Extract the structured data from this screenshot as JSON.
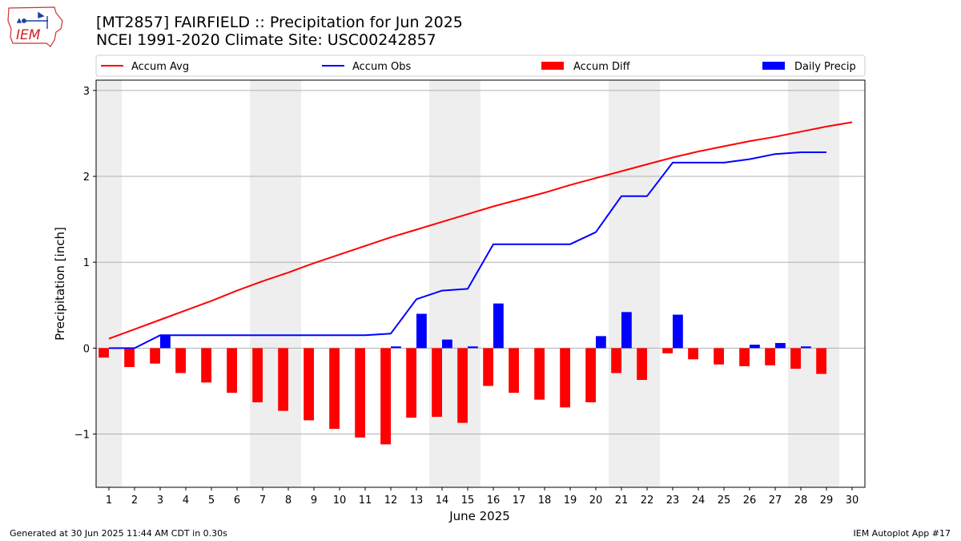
{
  "header": {
    "title_line1": "[MT2857] FAIRFIELD :: Precipitation for Jun 2025",
    "title_line2": "NCEI 1991-2020 Climate Site: USC00242857"
  },
  "logo": {
    "text": "IEM",
    "icon": "iowa-state-map-logo"
  },
  "footer": {
    "generated": "Generated at 30 Jun 2025 11:44 AM CDT in 0.30s",
    "app": "IEM Autoplot App #17"
  },
  "colors": {
    "accum_avg": "#ff0000",
    "accum_obs": "#0000ff",
    "accum_diff": "#ff0000",
    "daily_precip": "#0000ff",
    "weekend_shade": "#eeeeee",
    "grid": "#b0b0b0"
  },
  "chart_data": {
    "type": "bar",
    "xlabel": "June 2025",
    "ylabel": "Precipitation [inch]",
    "ylim": [
      -1.62,
      3.12
    ],
    "yticks": [
      -1,
      0,
      1,
      2,
      3
    ],
    "ytick_labels": [
      "−1",
      "0",
      "1",
      "2",
      "3"
    ],
    "grid": "horizontal",
    "legend_placement": "top",
    "x": [
      1,
      2,
      3,
      4,
      5,
      6,
      7,
      8,
      9,
      10,
      11,
      12,
      13,
      14,
      15,
      16,
      17,
      18,
      19,
      20,
      21,
      22,
      23,
      24,
      25,
      26,
      27,
      28,
      29,
      30
    ],
    "weekend_spans": [
      [
        1,
        1
      ],
      [
        7,
        8
      ],
      [
        14,
        15
      ],
      [
        21,
        22
      ],
      [
        28,
        29
      ]
    ],
    "legend": [
      "Accum Avg",
      "Accum Obs",
      "Accum Diff",
      "Daily Precip"
    ],
    "series": [
      {
        "name": "Accum Avg",
        "kind": "line",
        "x": [
          1,
          2,
          3,
          4,
          5,
          6,
          7,
          8,
          9,
          10,
          11,
          12,
          13,
          14,
          15,
          16,
          17,
          18,
          19,
          20,
          21,
          22,
          23,
          24,
          25,
          26,
          27,
          28,
          29,
          30
        ],
        "values": [
          0.11,
          0.22,
          0.33,
          0.44,
          0.55,
          0.67,
          0.78,
          0.88,
          0.99,
          1.09,
          1.19,
          1.29,
          1.38,
          1.47,
          1.56,
          1.65,
          1.73,
          1.81,
          1.9,
          1.98,
          2.06,
          2.14,
          2.22,
          2.29,
          2.35,
          2.41,
          2.46,
          2.52,
          2.58,
          2.63
        ]
      },
      {
        "name": "Accum Obs",
        "kind": "line",
        "x": [
          1,
          2,
          3,
          4,
          5,
          6,
          7,
          8,
          9,
          10,
          11,
          12,
          13,
          14,
          15,
          16,
          17,
          18,
          19,
          20,
          21,
          22,
          23,
          24,
          25,
          26,
          27,
          28,
          29
        ],
        "values": [
          0.0,
          0.0,
          0.15,
          0.15,
          0.15,
          0.15,
          0.15,
          0.15,
          0.15,
          0.15,
          0.15,
          0.17,
          0.57,
          0.67,
          0.69,
          1.21,
          1.21,
          1.21,
          1.21,
          1.35,
          1.77,
          1.77,
          2.16,
          2.16,
          2.16,
          2.2,
          2.26,
          2.28,
          2.28
        ]
      },
      {
        "name": "Accum Diff",
        "kind": "bar",
        "offset": "left",
        "x": [
          1,
          2,
          3,
          4,
          5,
          6,
          7,
          8,
          9,
          10,
          11,
          12,
          13,
          14,
          15,
          16,
          17,
          18,
          19,
          20,
          21,
          22,
          23,
          24,
          25,
          26,
          27,
          28,
          29
        ],
        "values": [
          -0.11,
          -0.22,
          -0.18,
          -0.29,
          -0.4,
          -0.52,
          -0.63,
          -0.73,
          -0.84,
          -0.94,
          -1.04,
          -1.12,
          -0.81,
          -0.8,
          -0.87,
          -0.44,
          -0.52,
          -0.6,
          -0.69,
          -0.63,
          -0.29,
          -0.37,
          -0.06,
          -0.13,
          -0.19,
          -0.21,
          -0.2,
          -0.24,
          -0.3
        ]
      },
      {
        "name": "Daily Precip",
        "kind": "bar",
        "offset": "right",
        "x": [
          1,
          2,
          3,
          4,
          5,
          6,
          7,
          8,
          9,
          10,
          11,
          12,
          13,
          14,
          15,
          16,
          17,
          18,
          19,
          20,
          21,
          22,
          23,
          24,
          25,
          26,
          27,
          28,
          29
        ],
        "values": [
          0,
          0,
          0.15,
          0,
          0,
          0,
          0,
          0,
          0,
          0,
          0,
          0.02,
          0.4,
          0.1,
          0.02,
          0.52,
          0,
          0,
          0,
          0.14,
          0.42,
          0,
          0.39,
          0,
          0,
          0.04,
          0.06,
          0.02,
          0
        ]
      }
    ]
  }
}
